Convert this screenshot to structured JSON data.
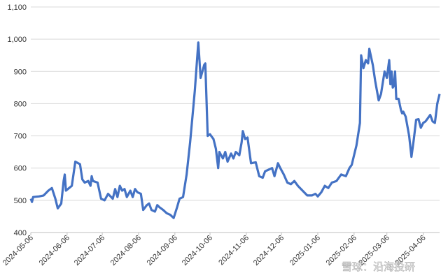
{
  "chart_data": {
    "type": "line",
    "color": "#4472c4",
    "grid": true,
    "ylim": [
      400,
      1100
    ],
    "yticks": [
      400,
      500,
      600,
      700,
      800,
      900,
      {
        "value": 1000,
        "label": "1,000"
      },
      {
        "value": 1100,
        "label": "1,100"
      }
    ],
    "xlim": [
      "2024-05-06",
      "2025-04-20"
    ],
    "xticks": [
      "2024-05-06",
      "2024-06-06",
      "2024-07-06",
      "2024-08-06",
      "2024-09-06",
      "2024-10-06",
      "2024-11-06",
      "2024-12-06",
      "2025-01-06",
      "2025-02-06",
      "2025-03-06",
      "2025-04-06"
    ],
    "watermark": "雪球：沿海投研",
    "x": [
      "2024-05-06",
      "2024-05-07",
      "2024-05-08",
      "2024-05-13",
      "2024-05-17",
      "2024-05-21",
      "2024-05-24",
      "2024-05-27",
      "2024-05-29",
      "2024-06-01",
      "2024-06-03",
      "2024-06-04",
      "2024-06-05",
      "2024-06-10",
      "2024-06-13",
      "2024-06-17",
      "2024-06-19",
      "2024-06-21",
      "2024-06-24",
      "2024-06-26",
      "2024-06-27",
      "2024-06-28",
      "2024-07-02",
      "2024-07-05",
      "2024-07-08",
      "2024-07-11",
      "2024-07-15",
      "2024-07-17",
      "2024-07-19",
      "2024-07-21",
      "2024-07-23",
      "2024-07-25",
      "2024-07-27",
      "2024-07-30",
      "2024-08-01",
      "2024-08-03",
      "2024-08-05",
      "2024-08-08",
      "2024-08-10",
      "2024-08-13",
      "2024-08-15",
      "2024-08-17",
      "2024-08-20",
      "2024-08-22",
      "2024-08-24",
      "2024-08-27",
      "2024-08-30",
      "2024-09-02",
      "2024-09-05",
      "2024-09-08",
      "2024-09-10",
      "2024-09-13",
      "2024-09-16",
      "2024-09-19",
      "2024-09-23",
      "2024-09-26",
      "2024-09-28",
      "2024-10-01",
      "2024-10-02",
      "2024-10-04",
      "2024-10-06",
      "2024-10-09",
      "2024-10-11",
      "2024-10-13",
      "2024-10-14",
      "2024-10-17",
      "2024-10-19",
      "2024-10-21",
      "2024-10-24",
      "2024-10-26",
      "2024-10-28",
      "2024-10-31",
      "2024-11-02",
      "2024-11-03",
      "2024-11-05",
      "2024-11-07",
      "2024-11-10",
      "2024-11-14",
      "2024-11-17",
      "2024-11-20",
      "2024-11-22",
      "2024-11-25",
      "2024-11-28",
      "2024-11-30",
      "2024-12-03",
      "2024-12-05",
      "2024-12-08",
      "2024-12-11",
      "2024-12-14",
      "2024-12-17",
      "2024-12-20",
      "2024-12-24",
      "2024-12-28",
      "2025-01-01",
      "2025-01-04",
      "2025-01-06",
      "2025-01-09",
      "2025-01-12",
      "2025-01-15",
      "2025-01-18",
      "2025-01-22",
      "2025-01-26",
      "2025-01-30",
      "2025-02-02",
      "2025-02-04",
      "2025-02-06",
      "2025-02-08",
      "2025-02-11",
      "2025-02-12",
      "2025-02-14",
      "2025-02-16",
      "2025-02-18",
      "2025-02-19",
      "2025-02-22",
      "2025-02-24",
      "2025-02-27",
      "2025-03-01",
      "2025-03-04",
      "2025-03-06",
      "2025-03-08",
      "2025-03-09",
      "2025-03-10",
      "2025-03-11",
      "2025-03-12",
      "2025-03-13",
      "2025-03-14",
      "2025-03-16",
      "2025-03-18",
      "2025-03-19",
      "2025-03-20",
      "2025-03-22",
      "2025-03-25",
      "2025-03-27",
      "2025-03-29",
      "2025-03-31",
      "2025-04-02",
      "2025-04-04",
      "2025-04-06",
      "2025-04-08",
      "2025-04-10",
      "2025-04-12",
      "2025-04-14",
      "2025-04-16",
      "2025-04-18",
      "2025-04-20"
    ],
    "values": [
      505,
      495,
      510,
      512,
      515,
      530,
      538,
      505,
      475,
      490,
      560,
      580,
      530,
      545,
      620,
      612,
      565,
      555,
      560,
      545,
      575,
      560,
      555,
      505,
      500,
      520,
      505,
      535,
      510,
      545,
      530,
      535,
      510,
      530,
      510,
      535,
      525,
      520,
      470,
      485,
      490,
      470,
      465,
      485,
      478,
      470,
      460,
      455,
      445,
      480,
      505,
      510,
      580,
      680,
      840,
      990,
      880,
      920,
      925,
      700,
      705,
      690,
      660,
      600,
      650,
      630,
      650,
      620,
      645,
      630,
      650,
      640,
      680,
      715,
      690,
      695,
      615,
      618,
      575,
      570,
      590,
      595,
      600,
      575,
      615,
      600,
      580,
      555,
      550,
      560,
      545,
      530,
      515,
      515,
      520,
      512,
      525,
      545,
      538,
      555,
      560,
      580,
      575,
      600,
      610,
      640,
      670,
      740,
      950,
      910,
      935,
      925,
      970,
      920,
      870,
      810,
      830,
      900,
      880,
      935,
      860,
      900,
      850,
      855,
      900,
      815,
      815,
      780,
      770,
      775,
      760,
      700,
      635,
      690,
      750,
      752,
      725,
      740,
      745,
      755,
      765,
      745,
      740,
      800,
      830
    ]
  }
}
